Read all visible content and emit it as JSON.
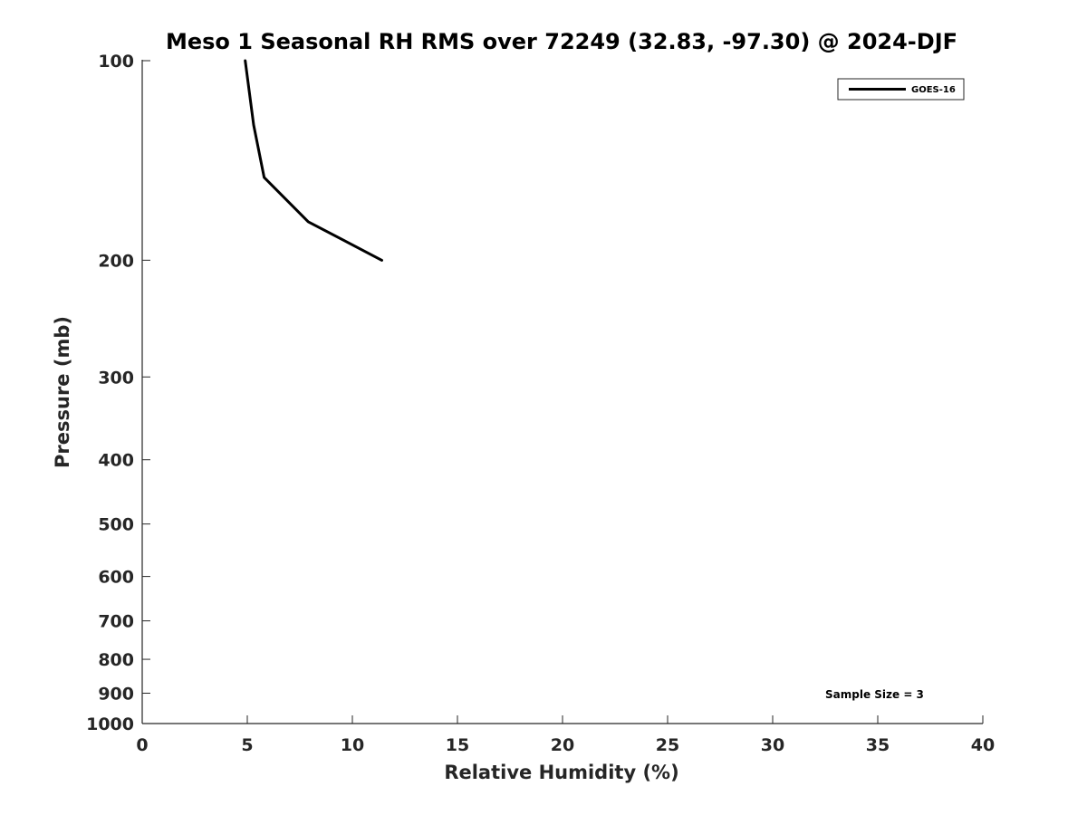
{
  "chart_data": {
    "type": "line",
    "title": "Meso 1 Seasonal RH RMS over 72249 (32.83, -97.30) @ 2024-DJF",
    "xlabel": "Relative Humidity (%)",
    "ylabel": "Pressure (mb)",
    "xlim": [
      0,
      40
    ],
    "ylim": [
      100,
      1000
    ],
    "y_scale": "log",
    "y_direction": "reversed",
    "x_ticks": [
      0,
      5,
      10,
      15,
      20,
      25,
      30,
      35,
      40
    ],
    "y_ticks": [
      100,
      200,
      300,
      400,
      500,
      600,
      700,
      800,
      900,
      1000
    ],
    "grid": false,
    "legend_position": "top-right",
    "annotation": "Sample Size = 3",
    "series": [
      {
        "name": "GOES-16",
        "color": "#000000",
        "points": [
          {
            "x": 4.9,
            "y": 100
          },
          {
            "x": 5.3,
            "y": 125
          },
          {
            "x": 5.8,
            "y": 150
          },
          {
            "x": 7.9,
            "y": 175
          },
          {
            "x": 11.4,
            "y": 200,
            "_ref": "placeholder"
          }
        ]
      }
    ]
  }
}
